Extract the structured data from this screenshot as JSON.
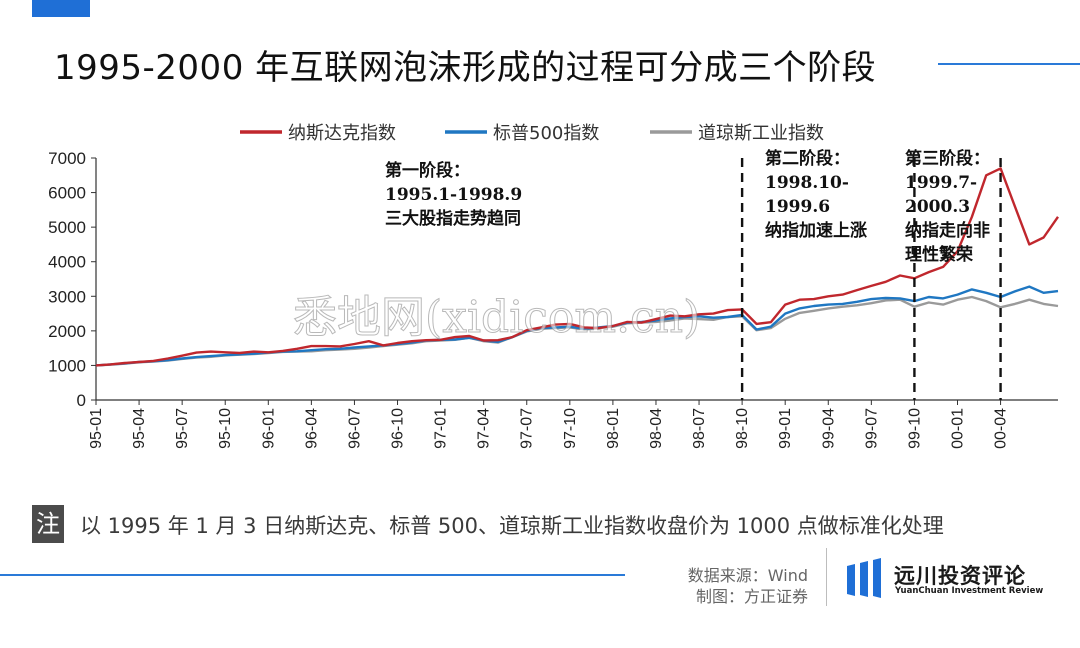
{
  "page": {
    "title": "1995-2000 年互联网泡沫形成的过程可分成三个阶段",
    "note_icon": "注",
    "note": "以 1995 年 1 月 3 日纳斯达克、标普 500、道琼斯工业指数收盘价为 1000 点做标准化处理",
    "source_line1": "数据来源：Wind",
    "source_line2": "制图：方正证券",
    "brand_name": "远川投资评论",
    "brand_sub": "YuanChuan Investment Review",
    "watermark": "悉地网(xidicom.cn)",
    "accent_color": "#1f6fd6"
  },
  "chart_data": {
    "type": "line",
    "x_ticks": [
      "95-01",
      "95-04",
      "95-07",
      "95-10",
      "96-01",
      "96-04",
      "96-07",
      "96-10",
      "97-01",
      "97-04",
      "97-07",
      "97-10",
      "98-01",
      "98-04",
      "98-07",
      "98-10",
      "99-01",
      "99-04",
      "99-07",
      "99-10",
      "00-01",
      "00-04"
    ],
    "ylim": [
      0,
      7000
    ],
    "yticks": [
      0,
      1000,
      2000,
      3000,
      4000,
      5000,
      6000,
      7000
    ],
    "legend_position": "top",
    "grid": false,
    "series": [
      {
        "name": "纳斯达克指数",
        "color": "#c0272d",
        "x": [
          0,
          1,
          2,
          3,
          4,
          5,
          6,
          7,
          8,
          9,
          10,
          11,
          12,
          13,
          14,
          15,
          16,
          17,
          18,
          19,
          20,
          21,
          22,
          23,
          24,
          25,
          26,
          27,
          28,
          29,
          30,
          31,
          32,
          33,
          34,
          35,
          36,
          37,
          38,
          39,
          40,
          41,
          42,
          43,
          44,
          45,
          46,
          47,
          48,
          49,
          50,
          51,
          52,
          53,
          54,
          55,
          56,
          57,
          58,
          59,
          60,
          61,
          62,
          63,
          64,
          65,
          66,
          67
        ],
        "values": [
          1000,
          1030,
          1070,
          1100,
          1130,
          1200,
          1280,
          1370,
          1400,
          1380,
          1360,
          1400,
          1380,
          1420,
          1480,
          1560,
          1560,
          1550,
          1620,
          1700,
          1580,
          1650,
          1700,
          1730,
          1740,
          1820,
          1850,
          1720,
          1730,
          1820,
          2020,
          2100,
          2180,
          2200,
          2100,
          2080,
          2140,
          2260,
          2240,
          2340,
          2440,
          2420,
          2480,
          2500,
          2600,
          2620,
          2200,
          2250,
          2760,
          2900,
          2920,
          3000,
          3050,
          3180,
          3300,
          3420,
          3600,
          3520,
          3700,
          3850,
          4300,
          5300,
          6500,
          6700,
          5600,
          4500,
          4700,
          5300
        ]
      },
      {
        "name": "标普500指数",
        "color": "#1f77c2",
        "x": [
          0,
          1,
          2,
          3,
          4,
          5,
          6,
          7,
          8,
          9,
          10,
          11,
          12,
          13,
          14,
          15,
          16,
          17,
          18,
          19,
          20,
          21,
          22,
          23,
          24,
          25,
          26,
          27,
          28,
          29,
          30,
          31,
          32,
          33,
          34,
          35,
          36,
          37,
          38,
          39,
          40,
          41,
          42,
          43,
          44,
          45,
          46,
          47,
          48,
          49,
          50,
          51,
          52,
          53,
          54,
          55,
          56,
          57,
          58,
          59,
          60,
          61,
          62,
          63,
          64,
          65,
          66,
          67
        ],
        "values": [
          1000,
          1030,
          1060,
          1100,
          1120,
          1150,
          1200,
          1240,
          1270,
          1300,
          1320,
          1340,
          1370,
          1400,
          1410,
          1440,
          1470,
          1480,
          1520,
          1550,
          1580,
          1620,
          1660,
          1720,
          1740,
          1750,
          1800,
          1720,
          1680,
          1820,
          2000,
          2080,
          2100,
          2120,
          2060,
          2100,
          2140,
          2240,
          2260,
          2300,
          2360,
          2400,
          2420,
          2380,
          2400,
          2460,
          2040,
          2120,
          2500,
          2650,
          2720,
          2760,
          2780,
          2840,
          2920,
          2950,
          2940,
          2860,
          2980,
          2940,
          3050,
          3200,
          3100,
          2980,
          3140,
          3280,
          3100,
          3150
        ]
      },
      {
        "name": "道琼斯工业指数",
        "color": "#9a9a9a",
        "x": [
          0,
          1,
          2,
          3,
          4,
          5,
          6,
          7,
          8,
          9,
          10,
          11,
          12,
          13,
          14,
          15,
          16,
          17,
          18,
          19,
          20,
          21,
          22,
          23,
          24,
          25,
          26,
          27,
          28,
          29,
          30,
          31,
          32,
          33,
          34,
          35,
          36,
          37,
          38,
          39,
          40,
          41,
          42,
          43,
          44,
          45,
          46,
          47,
          48,
          49,
          50,
          51,
          52,
          53,
          54,
          55,
          56,
          57,
          58,
          59,
          60,
          61,
          62,
          63,
          64,
          65,
          66,
          67
        ],
        "values": [
          1000,
          1020,
          1050,
          1090,
          1110,
          1140,
          1190,
          1230,
          1250,
          1290,
          1310,
          1330,
          1360,
          1390,
          1400,
          1410,
          1440,
          1460,
          1480,
          1520,
          1560,
          1600,
          1640,
          1700,
          1720,
          1740,
          1800,
          1700,
          1660,
          1820,
          1980,
          2060,
          2080,
          2100,
          2040,
          2080,
          2120,
          2220,
          2240,
          2260,
          2300,
          2360,
          2340,
          2320,
          2400,
          2420,
          2020,
          2080,
          2350,
          2520,
          2580,
          2650,
          2700,
          2740,
          2800,
          2880,
          2900,
          2700,
          2820,
          2760,
          2900,
          2980,
          2860,
          2680,
          2780,
          2900,
          2780,
          2720
        ]
      }
    ],
    "phase_lines_x": [
      45,
      57,
      63
    ],
    "annotations": [
      {
        "lines": [
          "第一阶段：",
          "1995.1-1998.9",
          "三大股指走势趋同"
        ]
      },
      {
        "lines": [
          "第二阶段：",
          "1998.10-",
          "1999.6",
          "纳指加速上涨"
        ]
      },
      {
        "lines": [
          "第三阶段：",
          "1999.7-",
          "2000.3",
          "纳指走向非",
          "理性繁荣"
        ]
      }
    ]
  }
}
